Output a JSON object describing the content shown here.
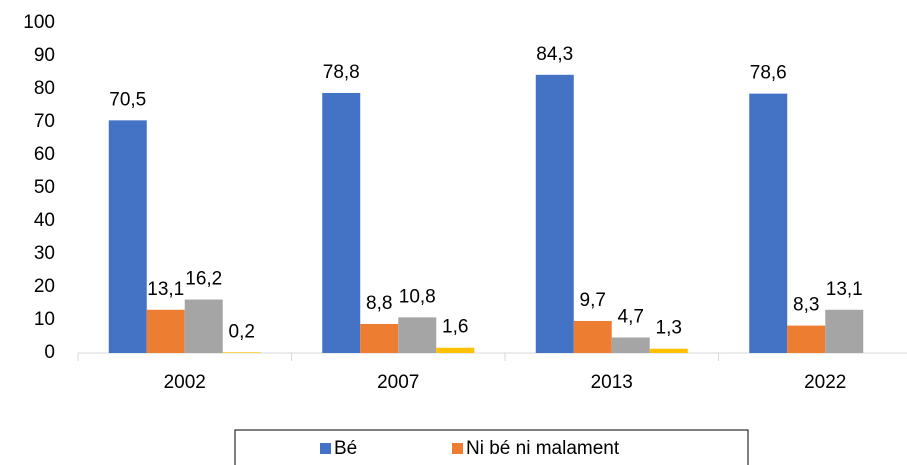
{
  "chart_data": {
    "type": "bar",
    "categories": [
      "2002",
      "2007",
      "2013",
      "2022"
    ],
    "series": [
      {
        "name": "Bé",
        "color": "#4472c4",
        "values": [
          70.5,
          78.8,
          84.3,
          78.6
        ],
        "value_labels": [
          "70,5",
          "78,8",
          "84,3",
          "78,6"
        ]
      },
      {
        "name": "Ni bé ni malament",
        "color": "#ed7d31",
        "values": [
          13.1,
          8.8,
          9.7,
          8.3
        ],
        "value_labels": [
          "13,1",
          "8,8",
          "9,7",
          "8,3"
        ]
      },
      {
        "color": "#a5a5a5",
        "values": [
          16.2,
          10.8,
          4.7,
          13.1
        ],
        "value_labels": [
          "16,2",
          "10,8",
          "4,7",
          "13,1"
        ]
      },
      {
        "color": "#ffc000",
        "values": [
          0.2,
          1.6,
          1.3,
          null
        ],
        "value_labels": [
          "0,2",
          "1,6",
          "1,3",
          null
        ]
      }
    ],
    "ylim": [
      0,
      100
    ],
    "yticks": [
      0,
      10,
      20,
      30,
      40,
      50,
      60,
      70,
      80,
      90,
      100
    ],
    "legend": "bottom"
  }
}
